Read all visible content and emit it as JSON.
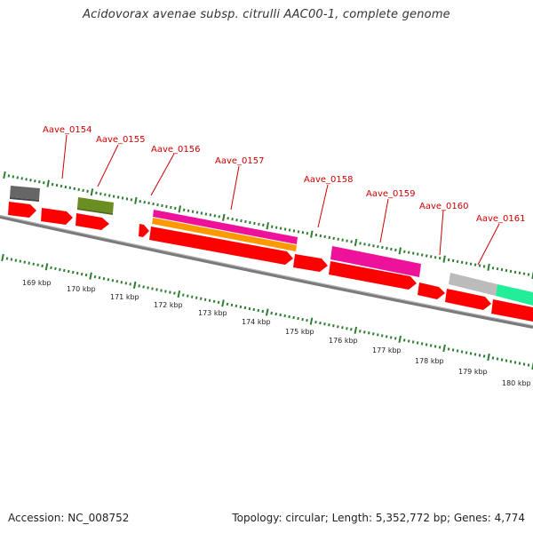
{
  "title": "Acidovorax avenae subsp. citrulli AAC00-1, complete genome",
  "accession": "Accession: NC_008752",
  "topology": "Topology: circular; Length: 5,352,772 bp; Genes: 4,774",
  "colors": {
    "backbone": "#7a7a7a",
    "tick": "#2e7d32",
    "gene_forward": "#ff0000",
    "label": "#cc0000",
    "gray_feature": "#666666",
    "olive_feature": "#6b8e23",
    "magenta_feature": "#ee1199",
    "orange_feature": "#ff9900",
    "lightgray_feature": "#bbbbbb",
    "mint_feature": "#22ee99"
  },
  "scale_labels": [
    "169 kbp",
    "170 kbp",
    "171 kbp",
    "172 kbp",
    "173 kbp",
    "174 kbp",
    "175 kbp",
    "176 kbp",
    "177 kbp",
    "178 kbp",
    "179 kbp",
    "180 kbp"
  ],
  "gene_labels": [
    "Aave_0154",
    "Aave_0155",
    "Aave_0156",
    "Aave_0157",
    "Aave_0158",
    "Aave_0159",
    "Aave_0160",
    "Aave_0161"
  ]
}
